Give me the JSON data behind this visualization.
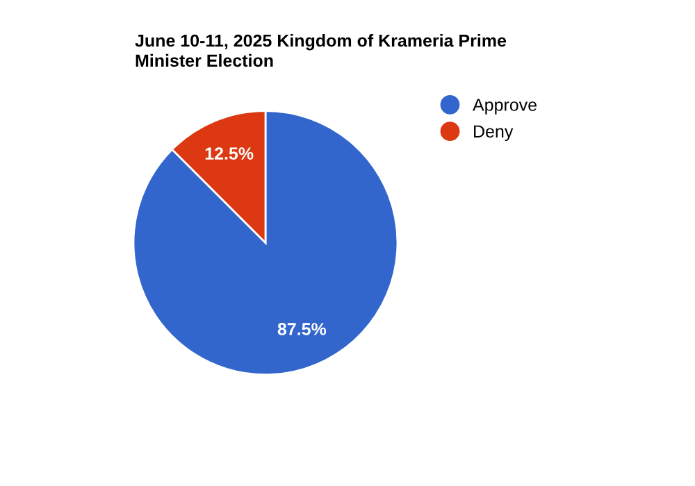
{
  "chart_data": {
    "type": "pie",
    "title": "June 10-11, 2025 Kingdom of Krameria Prime Minister Election",
    "categories": [
      "Approve",
      "Deny"
    ],
    "values": [
      87.5,
      12.5
    ],
    "colors": [
      "#3366cc",
      "#dc3912"
    ],
    "value_labels": [
      "87.5%",
      "12.5%"
    ],
    "legend": "top right"
  }
}
